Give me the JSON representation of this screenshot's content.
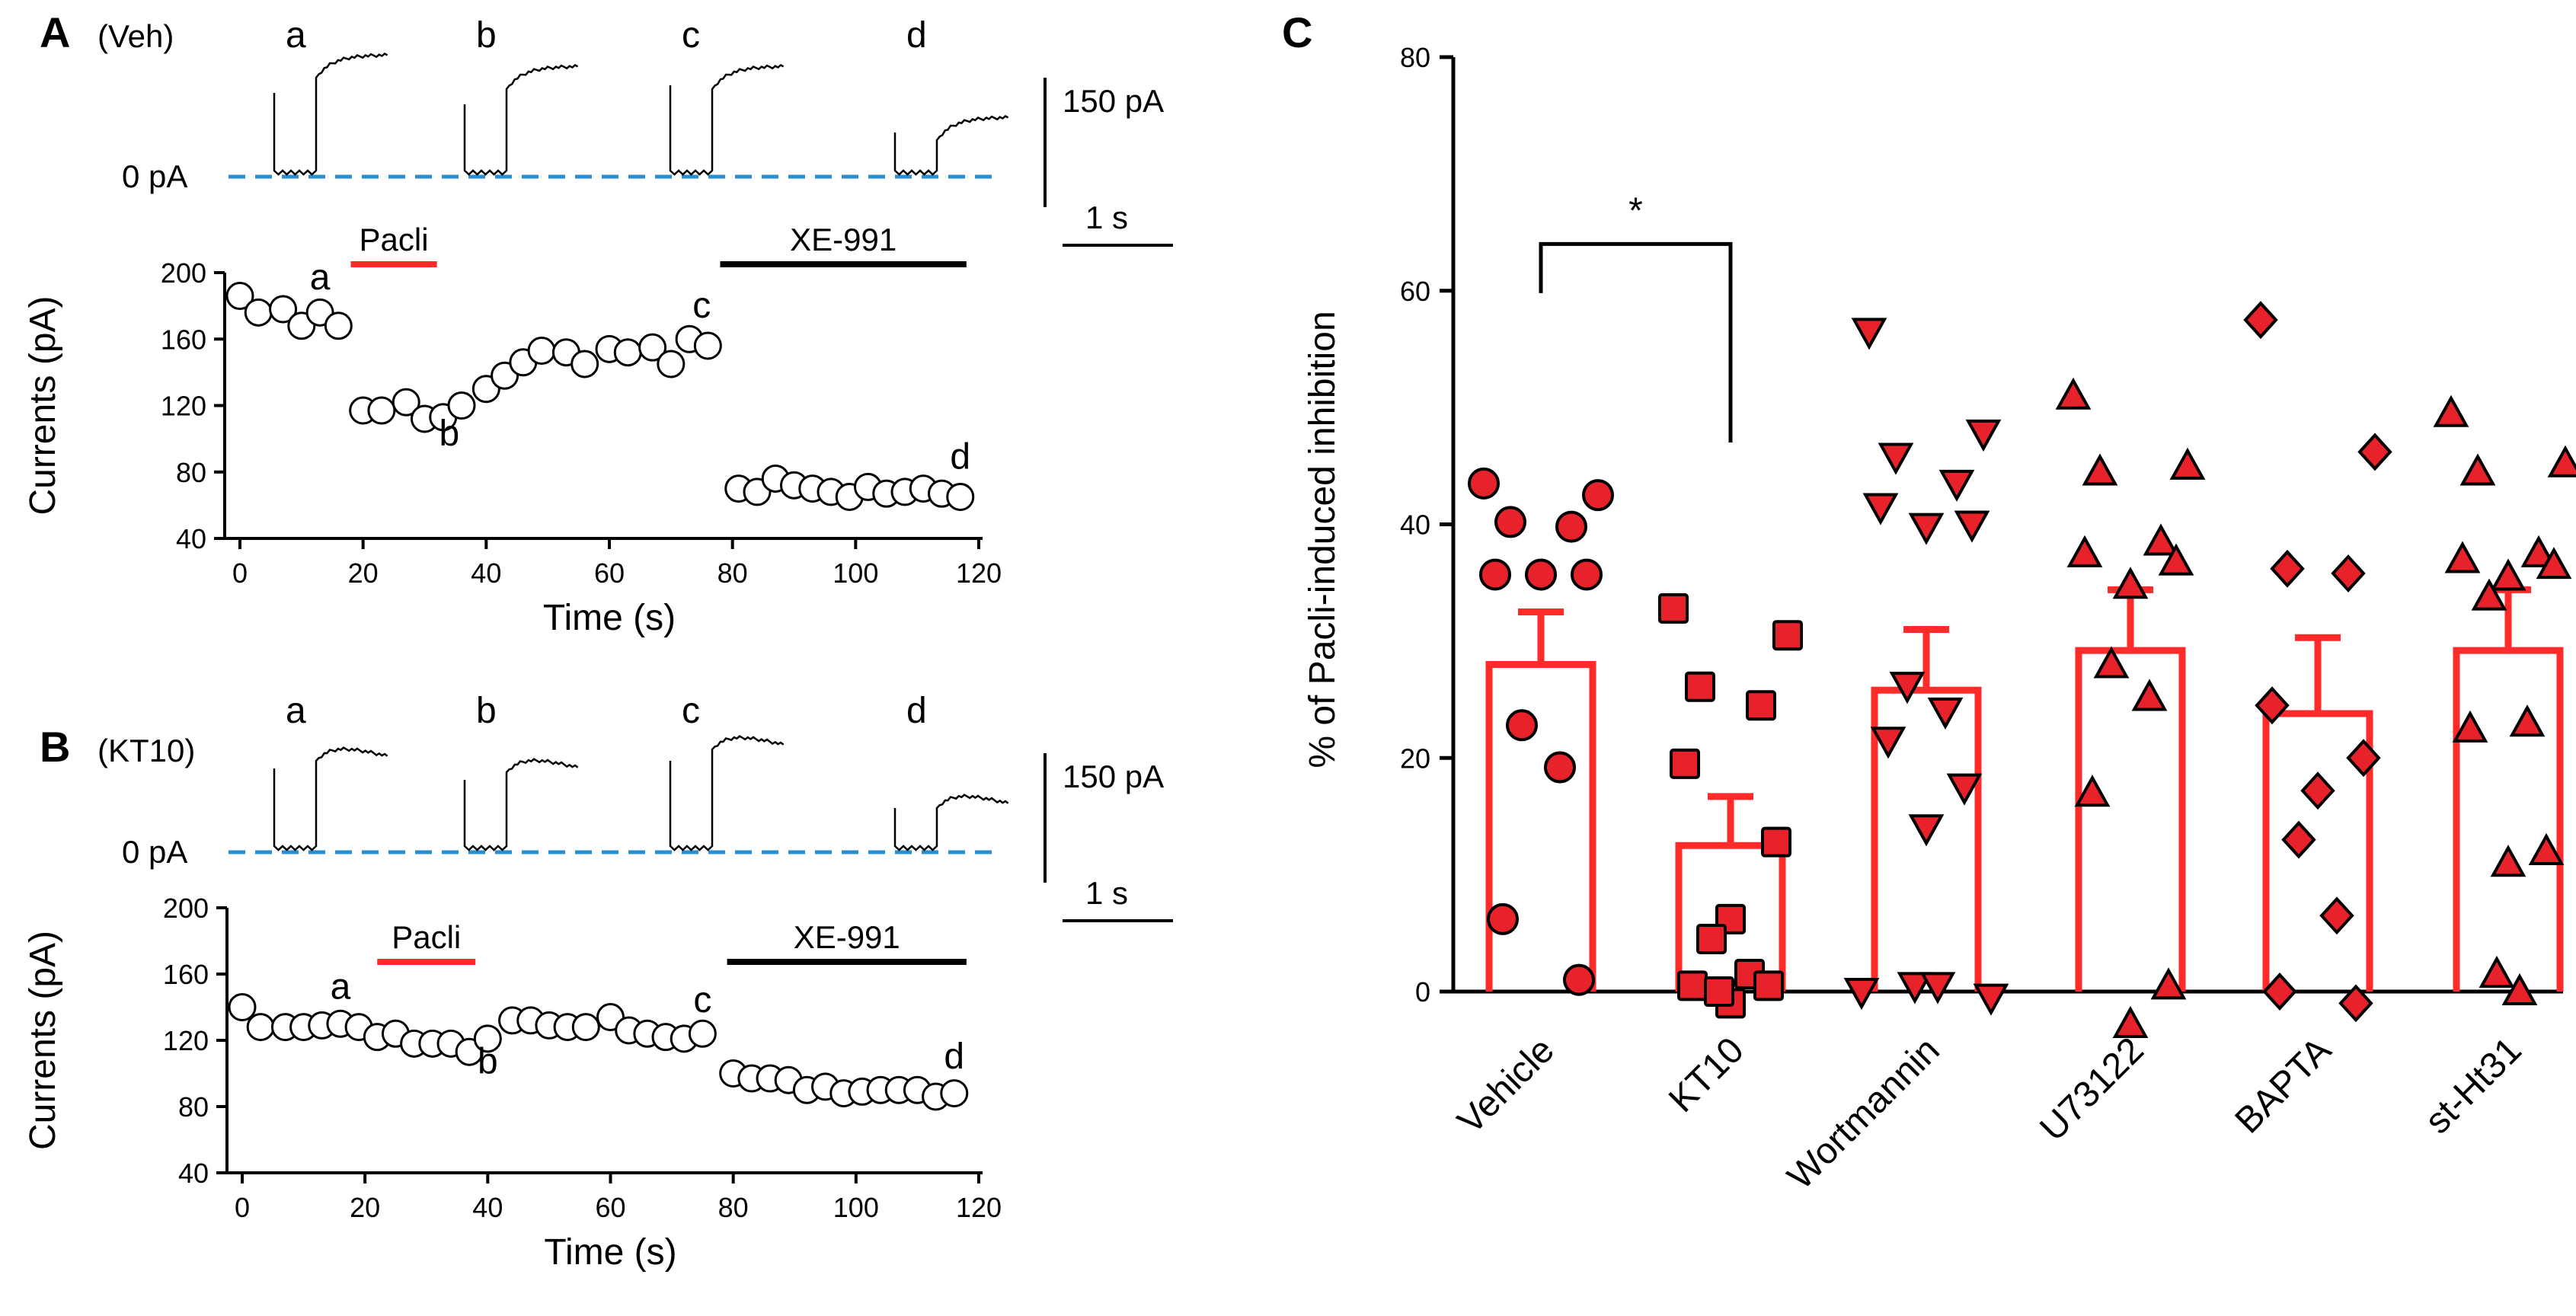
{
  "chart_data": [
    {
      "panel": "A",
      "type": "scatter",
      "condition": "(Veh)",
      "trace_labels": [
        "a",
        "b",
        "c",
        "d"
      ],
      "baseline_label": "0 pA",
      "scalebar": {
        "current": "150 pA",
        "time": "1 s"
      },
      "bars": [
        {
          "label": "Pacli",
          "x": [
            18,
            32
          ],
          "color": "#ff2a2a"
        },
        {
          "label": "XE-991",
          "x": [
            78,
            118
          ],
          "color": "#000000"
        }
      ],
      "xlabel": "Time (s)",
      "ylabel": "Currents (pA)",
      "xlim": [
        0,
        120
      ],
      "ylim": [
        40,
        200
      ],
      "xticks": [
        0,
        20,
        40,
        60,
        80,
        100,
        120
      ],
      "yticks": [
        40,
        80,
        120,
        160,
        200
      ],
      "points": [
        [
          0,
          186
        ],
        [
          3,
          176
        ],
        [
          7,
          178
        ],
        [
          10,
          168
        ],
        [
          13,
          176
        ],
        [
          16,
          168
        ],
        [
          20,
          117
        ],
        [
          23,
          117
        ],
        [
          27,
          122
        ],
        [
          30,
          112
        ],
        [
          33,
          113
        ],
        [
          36,
          120
        ],
        [
          40,
          130
        ],
        [
          43,
          138
        ],
        [
          46,
          146
        ],
        [
          49,
          153
        ],
        [
          53,
          152
        ],
        [
          56,
          145
        ],
        [
          60,
          154
        ],
        [
          63,
          152
        ],
        [
          67,
          155
        ],
        [
          70,
          145
        ],
        [
          73,
          160
        ],
        [
          76,
          156
        ],
        [
          81,
          70
        ],
        [
          84,
          68
        ],
        [
          87,
          76
        ],
        [
          90,
          72
        ],
        [
          93,
          70
        ],
        [
          96,
          68
        ],
        [
          99,
          65
        ],
        [
          102,
          71
        ],
        [
          105,
          67
        ],
        [
          108,
          68
        ],
        [
          111,
          70
        ],
        [
          114,
          67
        ],
        [
          117,
          65
        ]
      ],
      "point_labels": [
        {
          "text": "a",
          "x": 13,
          "y": 190
        },
        {
          "text": "b",
          "x": 34,
          "y": 96
        },
        {
          "text": "c",
          "x": 75,
          "y": 173
        },
        {
          "text": "d",
          "x": 117,
          "y": 82
        }
      ]
    },
    {
      "panel": "B",
      "type": "scatter",
      "condition": "(KT10)",
      "trace_labels": [
        "a",
        "b",
        "c",
        "d"
      ],
      "baseline_label": "0 pA",
      "scalebar": {
        "current": "150 pA",
        "time": "1 s"
      },
      "bars": [
        {
          "label": "Pacli",
          "x": [
            22,
            38
          ],
          "color": "#ff2a2a"
        },
        {
          "label": "XE-991",
          "x": [
            79,
            118
          ],
          "color": "#000000"
        }
      ],
      "xlabel": "Time (s)",
      "ylabel": "Currents (pA)",
      "xlim": [
        0,
        120
      ],
      "ylim": [
        40,
        200
      ],
      "xticks": [
        0,
        20,
        40,
        60,
        80,
        100,
        120
      ],
      "yticks": [
        40,
        80,
        120,
        160,
        200
      ],
      "points": [
        [
          0,
          140
        ],
        [
          3,
          128
        ],
        [
          7,
          128
        ],
        [
          10,
          128
        ],
        [
          13,
          129
        ],
        [
          16,
          130
        ],
        [
          19,
          128
        ],
        [
          22,
          122
        ],
        [
          25,
          124
        ],
        [
          28,
          118
        ],
        [
          31,
          118
        ],
        [
          34,
          118
        ],
        [
          37,
          113
        ],
        [
          40,
          121
        ],
        [
          44,
          132
        ],
        [
          47,
          132
        ],
        [
          50,
          129
        ],
        [
          53,
          128
        ],
        [
          56,
          128
        ],
        [
          60,
          134
        ],
        [
          63,
          126
        ],
        [
          66,
          124
        ],
        [
          69,
          122
        ],
        [
          72,
          121
        ],
        [
          75,
          124
        ],
        [
          80,
          100
        ],
        [
          83,
          97
        ],
        [
          86,
          97
        ],
        [
          89,
          96
        ],
        [
          92,
          90
        ],
        [
          95,
          92
        ],
        [
          98,
          88
        ],
        [
          101,
          89
        ],
        [
          104,
          90
        ],
        [
          107,
          90
        ],
        [
          110,
          90
        ],
        [
          113,
          86
        ],
        [
          116,
          88
        ]
      ],
      "point_labels": [
        {
          "text": "a",
          "x": 16,
          "y": 145
        },
        {
          "text": "b",
          "x": 40,
          "y": 100
        },
        {
          "text": "c",
          "x": 75,
          "y": 137
        },
        {
          "text": "d",
          "x": 116,
          "y": 103
        }
      ]
    },
    {
      "panel": "C",
      "type": "bar",
      "categories": [
        "Vehicle",
        "KT10",
        "Wortmannin",
        "U73122",
        "BAPTA",
        "st-Ht31"
      ],
      "values": [
        28,
        12.5,
        25.8,
        29.2,
        23.8,
        29.2
      ],
      "errors": [
        4.5,
        4.2,
        5.2,
        5.2,
        6.5,
        5.2
      ],
      "markers": [
        "circle",
        "square",
        "triangle-down",
        "triangle-up",
        "diamond",
        "triangle-up"
      ],
      "points": [
        [
          43.5,
          42.5,
          40.2,
          39.8,
          35.7,
          35.7,
          35.7,
          22.8,
          19.2,
          6.2,
          1.0
        ],
        [
          32.8,
          30.5,
          26.1,
          24.5,
          19.5,
          12.8,
          6.2,
          4.5,
          1.5,
          0.5,
          0.5,
          -1.0,
          0.0
        ],
        [
          56.5,
          47.8,
          45.8,
          43.5,
          41.5,
          40.0,
          39.8,
          26.2,
          24.0,
          21.5,
          17.5,
          14.0,
          0.5,
          0.5,
          0.0,
          -0.5
        ],
        [
          51.0,
          45.0,
          44.5,
          38.5,
          37.5,
          36.8,
          34.8,
          28.0,
          25.2,
          17.0,
          0.5,
          -2.8
        ],
        [
          57.5,
          46.2,
          36.2,
          35.8,
          24.5,
          20.0,
          17.2,
          13.0,
          6.5,
          0.0,
          -1.0
        ],
        [
          49.5,
          45.2,
          44.5,
          37.5,
          37.0,
          36.5,
          35.5,
          33.8,
          23.0,
          22.5,
          12.0,
          11.0,
          1.5,
          0.0
        ]
      ],
      "ylabel": "% of Pacli-induced inhibition",
      "ylim": [
        0,
        80
      ],
      "yticks": [
        0,
        20,
        40,
        60,
        80
      ],
      "significance": {
        "from": 0,
        "to": 1,
        "label": "*"
      },
      "bar_color": "#ff2a2a",
      "point_color": "#e8222a"
    }
  ],
  "panels": {
    "a": "A",
    "b": "B",
    "c": "C"
  }
}
